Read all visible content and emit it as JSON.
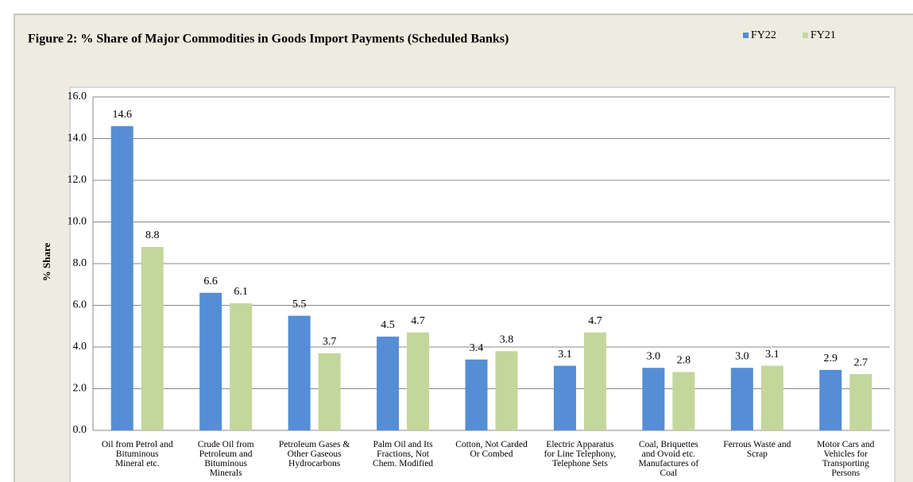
{
  "chart_data": {
    "type": "bar",
    "title": "Figure 2: % Share of Major Commodities in Goods Import Payments (Scheduled Banks)",
    "y_label": "% Share",
    "categories": [
      "Oil from Petrol and\nBituminous\nMineral etc.",
      "Crude Oil from\nPetroleum and\nBituminous\nMinerals",
      "Petroleum Gases &\nOther Gaseous\nHydrocarbons",
      "Palm Oil and Its\nFractions, Not\nChem. Modified",
      "Cotton, Not Carded\nOr Combed",
      "Electric Apparatus\nfor Line Telephony,\nTelephone Sets",
      "Coal, Briquettes\nand Ovoid etc.\nManufactures of\nCoal",
      "Ferrous Waste and\nScrap",
      "Motor Cars and\nVehicles for\nTransporting\nPersons"
    ],
    "series": [
      {
        "name": "FY22",
        "color": "#558ed5",
        "values": [
          14.6,
          6.6,
          5.5,
          4.5,
          3.4,
          3.1,
          3.0,
          3.0,
          2.9
        ],
        "value_labels": [
          "14.6",
          "6.6",
          "5.5",
          "4.5",
          "3.4",
          "3.1",
          "3.0",
          "3.0",
          "2.9"
        ]
      },
      {
        "name": "FY21",
        "color": "#c3d69b",
        "values": [
          8.8,
          6.1,
          3.7,
          4.7,
          3.8,
          4.7,
          2.8,
          3.1,
          2.7
        ],
        "value_labels": [
          "8.8",
          "6.1",
          "3.7",
          "4.7",
          "3.8",
          "4.7",
          "2.8",
          "3.1",
          "2.7"
        ]
      }
    ],
    "ylim": [
      0,
      16
    ],
    "yticks": [
      {
        "value": 0,
        "label": "0.0"
      },
      {
        "value": 2,
        "label": "2.0"
      },
      {
        "value": 4,
        "label": "4.0"
      },
      {
        "value": 6,
        "label": "6.0"
      },
      {
        "value": 8,
        "label": "8.0"
      },
      {
        "value": 10,
        "label": "10.0"
      },
      {
        "value": 12,
        "label": "12.0"
      },
      {
        "value": 14,
        "label": "14.0"
      },
      {
        "value": 16,
        "label": "16.0"
      }
    ],
    "grid": true,
    "legend": "top-right"
  }
}
